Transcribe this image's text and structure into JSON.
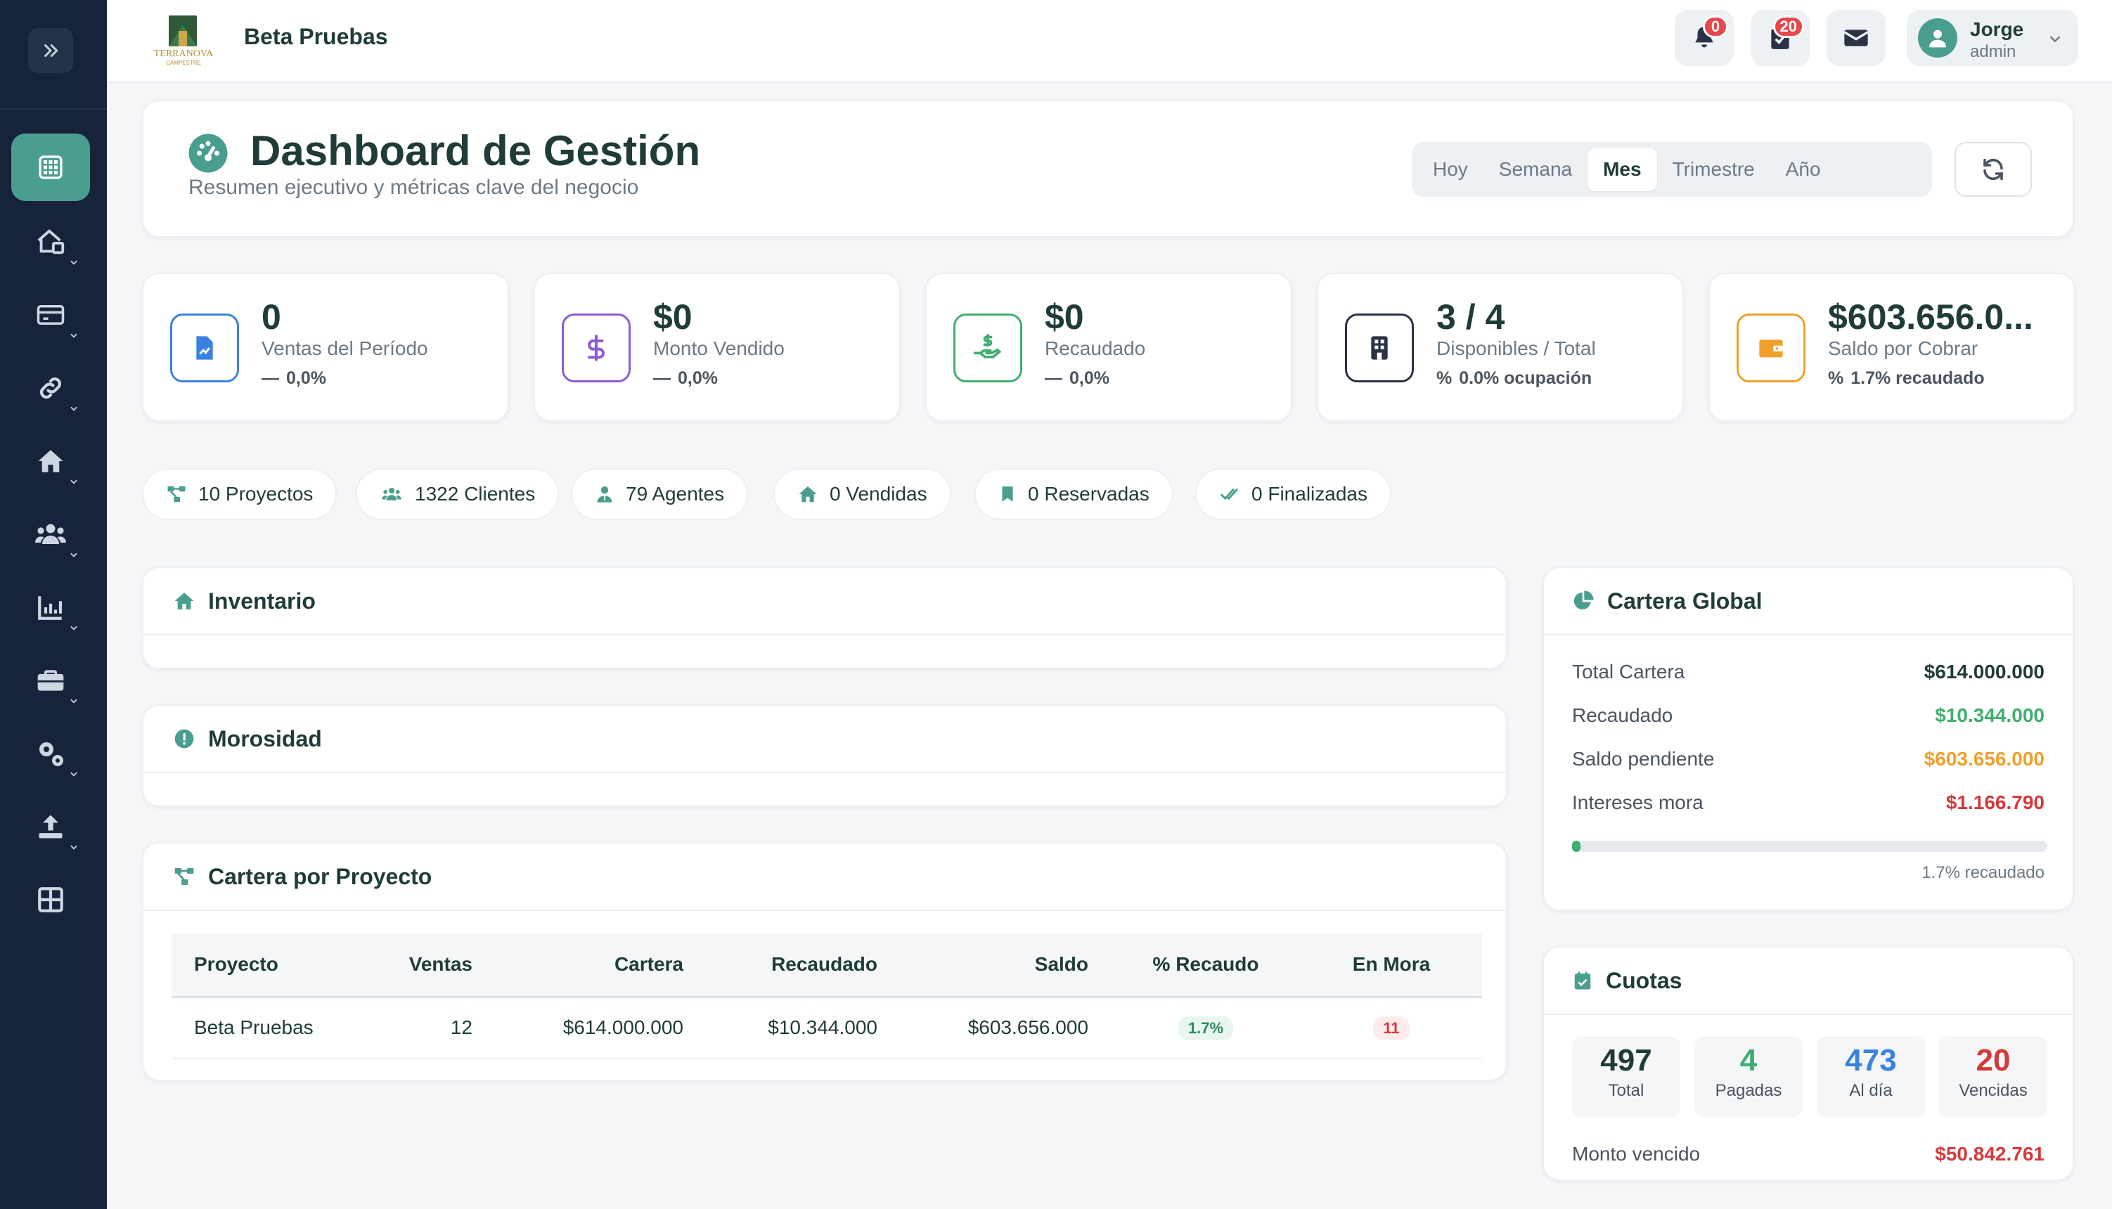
{
  "topbar": {
    "app_title": "Beta Pruebas",
    "notifications_count": "0",
    "tasks_count": "20",
    "user_name": "Jorge",
    "user_role": "admin"
  },
  "header": {
    "title": "Dashboard de Gestión",
    "subtitle": "Resumen ejecutivo y métricas clave del negocio",
    "periods": [
      "Hoy",
      "Semana",
      "Mes",
      "Trimestre",
      "Año"
    ],
    "active_period": "Mes"
  },
  "kpis": [
    {
      "value": "0",
      "label": "Ventas del Período",
      "sub": "0,0%",
      "color": "#3b82e0",
      "icon": "file-chart-icon"
    },
    {
      "value": "$0",
      "label": "Monto Vendido",
      "sub": "0,0%",
      "color": "#8b5cd6",
      "icon": "dollar-icon"
    },
    {
      "value": "$0",
      "label": "Recaudado",
      "sub": "0,0%",
      "color": "#3fae6e",
      "icon": "hand-money-icon"
    },
    {
      "value": "3 / 4",
      "label": "Disponibles / Total",
      "sub": "0.0% ocupación",
      "color": "#2a3346",
      "icon": "building-icon"
    },
    {
      "value": "$603.656.0...",
      "label": "Saldo por Cobrar",
      "sub": "1.7% recaudado",
      "color": "#f0a02a",
      "icon": "wallet-icon"
    }
  ],
  "chips": [
    {
      "label": "10 Proyectos",
      "icon": "project-diagram-icon"
    },
    {
      "label": "1322 Clientes",
      "icon": "users-icon"
    },
    {
      "label": "79 Agentes",
      "icon": "user-tie-icon"
    },
    {
      "label": "0 Vendidas",
      "icon": "home-icon"
    },
    {
      "label": "0 Reservadas",
      "icon": "bookmark-icon"
    },
    {
      "label": "0 Finalizadas",
      "icon": "check-double-icon"
    }
  ],
  "inventario": {
    "title": "Inventario"
  },
  "morosidad": {
    "title": "Morosidad"
  },
  "cartera_proyecto": {
    "title": "Cartera por Proyecto",
    "columns": [
      "Proyecto",
      "Ventas",
      "Cartera",
      "Recaudado",
      "Saldo",
      "% Recaudo",
      "En Mora"
    ],
    "rows": [
      {
        "proyecto": "Beta Pruebas",
        "ventas": "12",
        "cartera": "$614.000.000",
        "recaudado": "$10.344.000",
        "saldo": "$603.656.000",
        "recaudo": "1.7%",
        "mora": "11"
      }
    ]
  },
  "cartera_global": {
    "title": "Cartera Global",
    "rows": [
      {
        "k": "Total Cartera",
        "v": "$614.000.000",
        "color": "#1f3b3a"
      },
      {
        "k": "Recaudado",
        "v": "$10.344.000",
        "color": "#3fae6e"
      },
      {
        "k": "Saldo pendiente",
        "v": "$603.656.000",
        "color": "#f0a02a"
      },
      {
        "k": "Intereses mora",
        "v": "$1.166.790",
        "color": "#d53a3a"
      }
    ],
    "progress_fraction": 0.017,
    "progress_label": "1.7% recaudado"
  },
  "cuotas": {
    "title": "Cuotas",
    "boxes": [
      {
        "num": "497",
        "lbl": "Total",
        "color": "#1f3b3a"
      },
      {
        "num": "4",
        "lbl": "Pagadas",
        "color": "#3fae6e"
      },
      {
        "num": "473",
        "lbl": "Al día",
        "color": "#3b82e0"
      },
      {
        "num": "20",
        "lbl": "Vencidas",
        "color": "#d53a3a"
      }
    ],
    "monto_vencido_label": "Monto vencido",
    "monto_vencido_value": "$50.842.761"
  }
}
